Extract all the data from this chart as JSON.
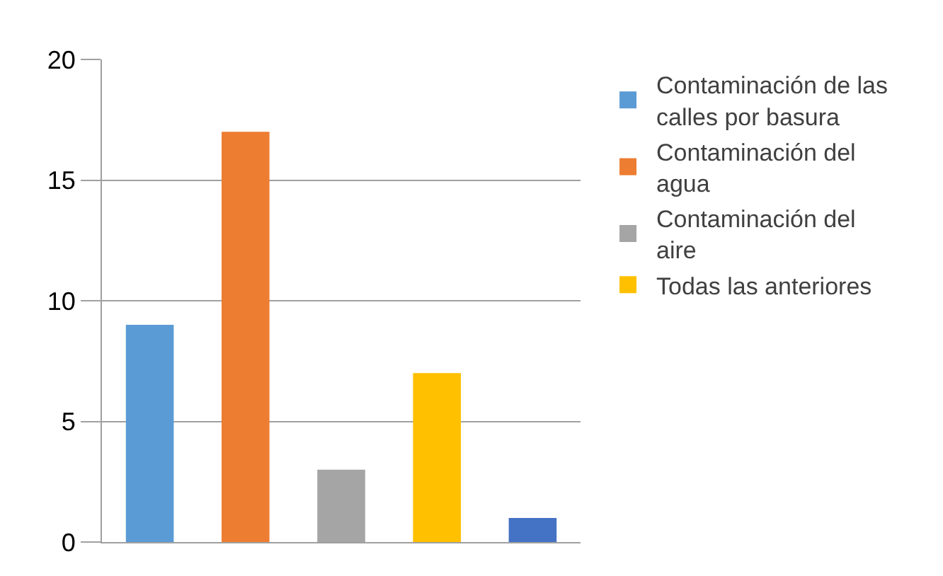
{
  "chart_data": {
    "type": "bar",
    "categories": [
      null
    ],
    "series": [
      {
        "name": "Contaminación de las calles por basura",
        "color": "#5b9bd5",
        "values": [
          9
        ]
      },
      {
        "name": "Contaminación del agua",
        "color": "#ed7d31",
        "values": [
          17
        ]
      },
      {
        "name": "Contaminación del aire",
        "color": "#a5a5a5",
        "values": [
          3
        ]
      },
      {
        "name": "Todas las anteriores",
        "color": "#ffc000",
        "values": [
          7
        ]
      },
      {
        "color": "#4472c4",
        "values": [
          1
        ]
      }
    ],
    "ylim": [
      0,
      20
    ],
    "yticks": [
      0,
      5,
      10,
      15,
      20
    ],
    "grid": "y",
    "legend": "right"
  }
}
